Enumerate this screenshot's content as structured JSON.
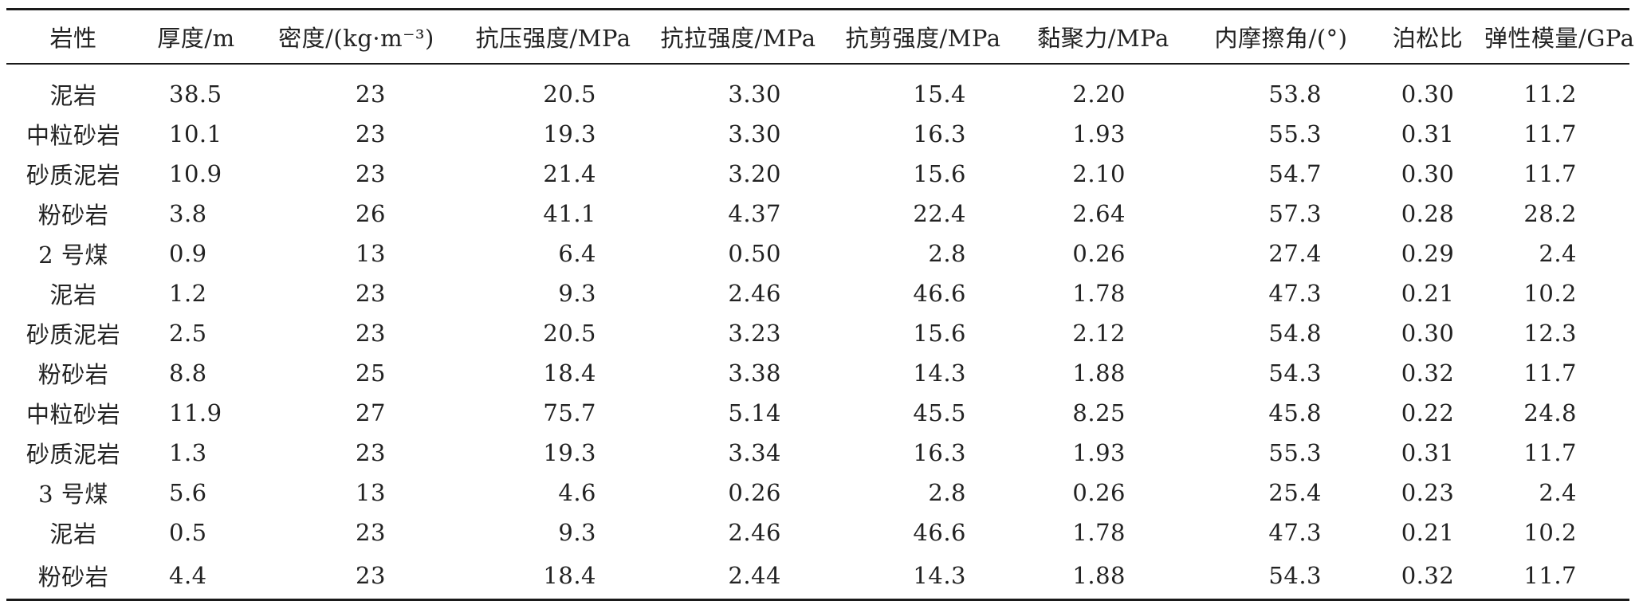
{
  "table": {
    "headers": [
      "岩性",
      "厚度/m",
      "密度/(kg·m⁻³)",
      "抗压强度/MPa",
      "抗拉强度/MPa",
      "抗剪强度/MPa",
      "黏聚力/MPa",
      "内摩擦角/(°)",
      "泊松比",
      "弹性模量/GPa"
    ],
    "rows": [
      [
        "泥岩",
        "38.5",
        "23",
        "20.5",
        "3.30",
        "15.4",
        "2.20",
        "53.8",
        "0.30",
        "11.2"
      ],
      [
        "中粒砂岩",
        "10.1",
        "23",
        "19.3",
        "3.30",
        "16.3",
        "1.93",
        "55.3",
        "0.31",
        "11.7"
      ],
      [
        "砂质泥岩",
        "10.9",
        "23",
        "21.4",
        "3.20",
        "15.6",
        "2.10",
        "54.7",
        "0.30",
        "11.7"
      ],
      [
        "粉砂岩",
        "3.8",
        "26",
        "41.1",
        "4.37",
        "22.4",
        "2.64",
        "57.3",
        "0.28",
        "28.2"
      ],
      [
        "2 号煤",
        "0.9",
        "13",
        "6.4",
        "0.50",
        "2.8",
        "0.26",
        "27.4",
        "0.29",
        "2.4"
      ],
      [
        "泥岩",
        "1.2",
        "23",
        "9.3",
        "2.46",
        "46.6",
        "1.78",
        "47.3",
        "0.21",
        "10.2"
      ],
      [
        "砂质泥岩",
        "2.5",
        "23",
        "20.5",
        "3.23",
        "15.6",
        "2.12",
        "54.8",
        "0.30",
        "12.3"
      ],
      [
        "粉砂岩",
        "8.8",
        "25",
        "18.4",
        "3.38",
        "14.3",
        "1.88",
        "54.3",
        "0.32",
        "11.7"
      ],
      [
        "中粒砂岩",
        "11.9",
        "27",
        "75.7",
        "5.14",
        "45.5",
        "8.25",
        "45.8",
        "0.22",
        "24.8"
      ],
      [
        "砂质泥岩",
        "1.3",
        "23",
        "19.3",
        "3.34",
        "16.3",
        "1.93",
        "55.3",
        "0.31",
        "11.7"
      ],
      [
        "3 号煤",
        "5.6",
        "13",
        "4.6",
        "0.26",
        "2.8",
        "0.26",
        "25.4",
        "0.23",
        "2.4"
      ],
      [
        "泥岩",
        "0.5",
        "23",
        "9.3",
        "2.46",
        "46.6",
        "1.78",
        "47.3",
        "0.21",
        "10.2"
      ],
      [
        "粉砂岩",
        "4.4",
        "23",
        "18.4",
        "2.44",
        "14.3",
        "1.88",
        "54.3",
        "0.32",
        "11.7"
      ]
    ]
  }
}
